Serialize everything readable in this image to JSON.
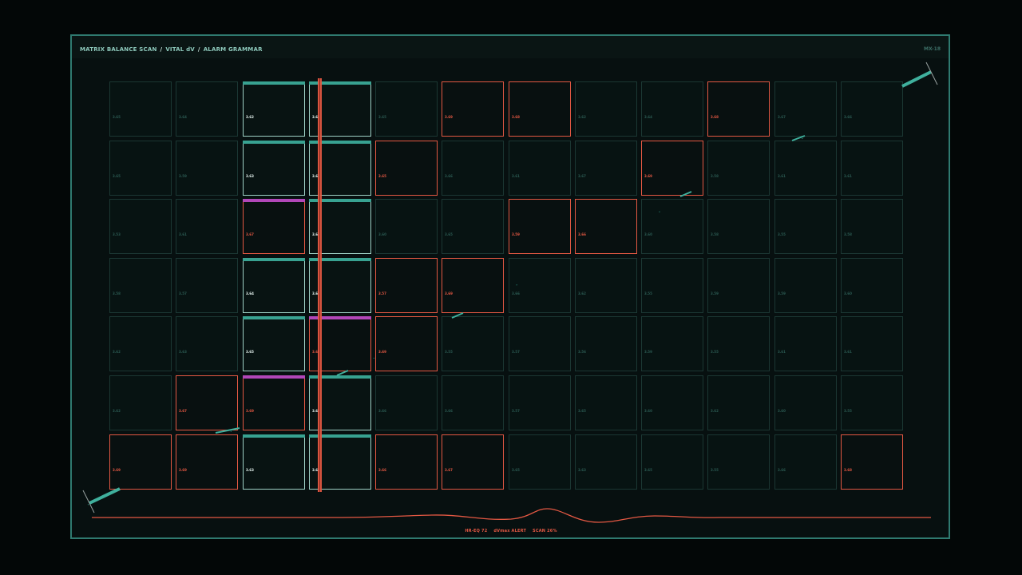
{
  "header": {
    "crumbs": [
      "MATRIX BALANCE SCAN",
      "VITAL dV",
      "ALARM GRAMMAR"
    ],
    "separator": "/",
    "panel_id": "MX-18"
  },
  "grid": {
    "rows": [
      [
        {
          "v": "3.65",
          "s": "n"
        },
        {
          "v": "3.64",
          "s": "n"
        },
        {
          "v": "3.62",
          "s": "a",
          "cap": "teal"
        },
        {
          "v": "3.68",
          "s": "a",
          "cap": "teal"
        },
        {
          "v": "3.65",
          "s": "n"
        },
        {
          "v": "3.69",
          "s": "r"
        },
        {
          "v": "3.68",
          "s": "r"
        },
        {
          "v": "3.62",
          "s": "n"
        },
        {
          "v": "3.64",
          "s": "n"
        },
        {
          "v": "3.68",
          "s": "r"
        },
        {
          "v": "3.67",
          "s": "n"
        },
        {
          "v": "3.66",
          "s": "n"
        }
      ],
      [
        {
          "v": "3.65",
          "s": "n"
        },
        {
          "v": "3.59",
          "s": "n"
        },
        {
          "v": "3.63",
          "s": "a",
          "cap": "teal"
        },
        {
          "v": "3.67",
          "s": "a",
          "cap": "teal"
        },
        {
          "v": "3.65",
          "s": "r"
        },
        {
          "v": "3.66",
          "s": "n"
        },
        {
          "v": "3.61",
          "s": "n"
        },
        {
          "v": "3.67",
          "s": "n"
        },
        {
          "v": "3.69",
          "s": "r"
        },
        {
          "v": "3.58",
          "s": "n"
        },
        {
          "v": "3.61",
          "s": "n"
        },
        {
          "v": "3.61",
          "s": "n"
        }
      ],
      [
        {
          "v": "3.53",
          "s": "n"
        },
        {
          "v": "3.61",
          "s": "n"
        },
        {
          "v": "3.67",
          "s": "r",
          "cap": "magenta"
        },
        {
          "v": "3.67",
          "s": "a",
          "cap": "teal"
        },
        {
          "v": "3.60",
          "s": "n"
        },
        {
          "v": "3.65",
          "s": "n"
        },
        {
          "v": "3.59",
          "s": "r"
        },
        {
          "v": "3.66",
          "s": "r"
        },
        {
          "v": "3.60",
          "s": "n"
        },
        {
          "v": "3.58",
          "s": "n"
        },
        {
          "v": "3.55",
          "s": "n"
        },
        {
          "v": "3.58",
          "s": "n"
        }
      ],
      [
        {
          "v": "3.58",
          "s": "n"
        },
        {
          "v": "3.57",
          "s": "n"
        },
        {
          "v": "3.64",
          "s": "a",
          "cap": "teal"
        },
        {
          "v": "3.61",
          "s": "a",
          "cap": "teal"
        },
        {
          "v": "3.57",
          "s": "r"
        },
        {
          "v": "3.69",
          "s": "r"
        },
        {
          "v": "3.66",
          "s": "n"
        },
        {
          "v": "3.62",
          "s": "n"
        },
        {
          "v": "3.55",
          "s": "n"
        },
        {
          "v": "3.59",
          "s": "n"
        },
        {
          "v": "3.59",
          "s": "n"
        },
        {
          "v": "3.60",
          "s": "n"
        }
      ],
      [
        {
          "v": "3.62",
          "s": "n"
        },
        {
          "v": "3.63",
          "s": "n"
        },
        {
          "v": "3.65",
          "s": "a",
          "cap": "teal"
        },
        {
          "v": "3.69",
          "s": "r",
          "cap": "magenta"
        },
        {
          "v": "3.69",
          "s": "r"
        },
        {
          "v": "3.55",
          "s": "n"
        },
        {
          "v": "3.57",
          "s": "n"
        },
        {
          "v": "3.56",
          "s": "n"
        },
        {
          "v": "3.59",
          "s": "n"
        },
        {
          "v": "3.55",
          "s": "n"
        },
        {
          "v": "3.61",
          "s": "n"
        },
        {
          "v": "3.61",
          "s": "n"
        }
      ],
      [
        {
          "v": "3.62",
          "s": "n"
        },
        {
          "v": "3.67",
          "s": "r"
        },
        {
          "v": "3.69",
          "s": "r",
          "cap": "magenta"
        },
        {
          "v": "3.66",
          "s": "a",
          "cap": "teal"
        },
        {
          "v": "3.66",
          "s": "n"
        },
        {
          "v": "3.66",
          "s": "n"
        },
        {
          "v": "3.57",
          "s": "n"
        },
        {
          "v": "3.65",
          "s": "n"
        },
        {
          "v": "3.60",
          "s": "n"
        },
        {
          "v": "3.62",
          "s": "n"
        },
        {
          "v": "3.60",
          "s": "n"
        },
        {
          "v": "3.55",
          "s": "n"
        }
      ],
      [
        {
          "v": "3.69",
          "s": "r"
        },
        {
          "v": "3.69",
          "s": "r"
        },
        {
          "v": "3.63",
          "s": "a",
          "cap": "teal"
        },
        {
          "v": "3.64",
          "s": "a",
          "cap": "teal"
        },
        {
          "v": "3.66",
          "s": "r"
        },
        {
          "v": "3.67",
          "s": "r"
        },
        {
          "v": "3.65",
          "s": "n"
        },
        {
          "v": "3.63",
          "s": "n"
        },
        {
          "v": "3.65",
          "s": "n"
        },
        {
          "v": "3.55",
          "s": "n"
        },
        {
          "v": "3.66",
          "s": "n"
        },
        {
          "v": "3.68",
          "s": "r"
        }
      ]
    ]
  },
  "footer": {
    "items": [
      "HR-EQ 72",
      "dVmax ALERT",
      "SCAN 26%"
    ],
    "scan_progress": 0.26
  },
  "colors": {
    "alert": "#e35843",
    "teal": "#38a291",
    "magenta": "#b147b8",
    "frame": "#2f7a70"
  }
}
